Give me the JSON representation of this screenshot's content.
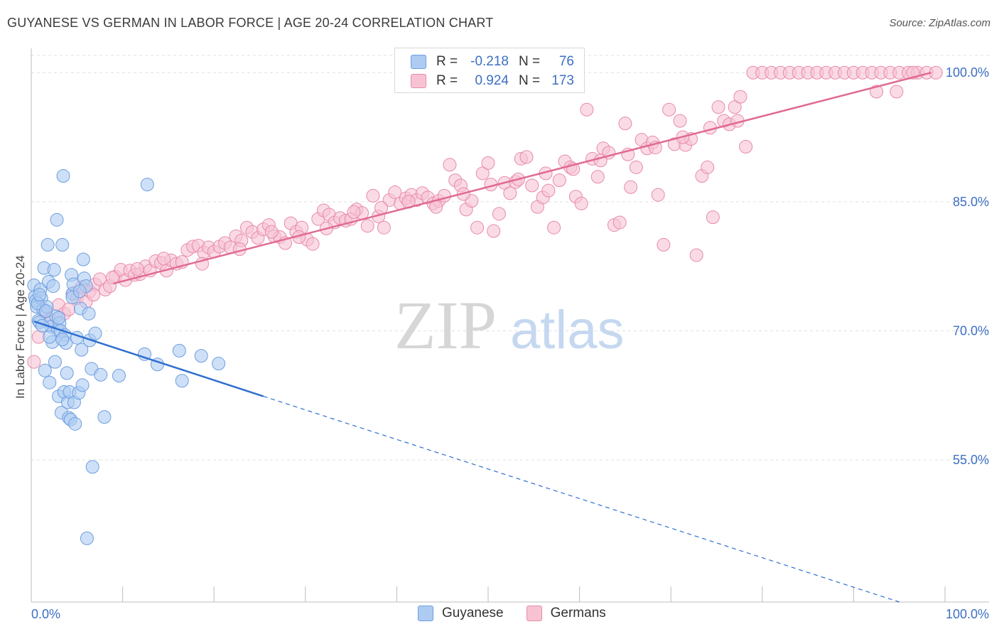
{
  "header": {
    "title": "GUYANESE VS GERMAN IN LABOR FORCE | AGE 20-24 CORRELATION CHART",
    "source": "Source: ZipAtlas.com"
  },
  "watermark": {
    "zip": "ZIP",
    "atlas": "atlas"
  },
  "legend_stats": {
    "guyanese": {
      "r_label": "R =",
      "r_value": "-0.218",
      "n_label": "N =",
      "n_value": "76"
    },
    "germans": {
      "r_label": "R =",
      "r_value": "0.924",
      "n_label": "N =",
      "n_value": "173"
    }
  },
  "colors": {
    "guyanese_fill": "#aecbf2",
    "guyanese_stroke": "#6d9ee0",
    "guyanese_line": "#2f6fd0",
    "germans_fill": "#f7c3d3",
    "germans_stroke": "#e88aa8",
    "germans_line": "#e06a95",
    "axis_label": "#3d6fc4",
    "grid": "#e0e0e0"
  },
  "chart_data": {
    "type": "scatter",
    "title": "GUYANESE VS GERMAN IN LABOR FORCE | AGE 20-24 CORRELATION CHART",
    "xlabel": "",
    "ylabel": "In Labor Force | Age 20-24",
    "xlim": [
      0,
      100
    ],
    "ylim": [
      38.5,
      102
    ],
    "x_tick_labels": [
      "0.0%",
      "100.0%"
    ],
    "y_ticks": [
      55,
      70,
      85,
      100
    ],
    "y_tick_labels": [
      "55.0%",
      "70.0%",
      "85.0%",
      "100.0%"
    ],
    "grid": true,
    "legend_position": "bottom",
    "series": [
      {
        "name": "Guyanese",
        "trend": {
          "x0": 0.3,
          "y0": 71.1,
          "x1": 25.4,
          "y1": 62.4,
          "dashed_to_x": 95,
          "dashed_to_y": 38.5
        },
        "points": [
          [
            0.3,
            75.3
          ],
          [
            0.4,
            74.0
          ],
          [
            0.5,
            73.5
          ],
          [
            0.6,
            72.8
          ],
          [
            0.8,
            71.2
          ],
          [
            0.9,
            71.0
          ],
          [
            1.0,
            74.8
          ],
          [
            1.1,
            73.8
          ],
          [
            1.3,
            72.5
          ],
          [
            1.4,
            77.3
          ],
          [
            1.5,
            65.4
          ],
          [
            1.7,
            72.8
          ],
          [
            1.8,
            80.0
          ],
          [
            1.9,
            75.7
          ],
          [
            2.0,
            64.0
          ],
          [
            2.1,
            71.0
          ],
          [
            2.2,
            70.5
          ],
          [
            2.3,
            68.7
          ],
          [
            2.4,
            75.2
          ],
          [
            2.5,
            77.1
          ],
          [
            2.6,
            66.4
          ],
          [
            2.7,
            71.7
          ],
          [
            2.8,
            82.9
          ],
          [
            2.9,
            70.1
          ],
          [
            3.0,
            62.4
          ],
          [
            3.1,
            70.9
          ],
          [
            3.2,
            70.0
          ],
          [
            3.3,
            60.5
          ],
          [
            3.4,
            80.0
          ],
          [
            3.5,
            88.0
          ],
          [
            3.6,
            62.9
          ],
          [
            3.7,
            69.5
          ],
          [
            3.8,
            68.6
          ],
          [
            3.9,
            65.1
          ],
          [
            4.0,
            61.7
          ],
          [
            4.1,
            59.9
          ],
          [
            4.2,
            62.9
          ],
          [
            4.3,
            59.7
          ],
          [
            4.4,
            76.5
          ],
          [
            4.5,
            74.3
          ],
          [
            4.6,
            75.4
          ],
          [
            4.7,
            61.7
          ],
          [
            4.8,
            59.2
          ],
          [
            5.0,
            69.2
          ],
          [
            5.2,
            62.8
          ],
          [
            5.4,
            72.6
          ],
          [
            5.5,
            67.8
          ],
          [
            5.6,
            63.7
          ],
          [
            5.7,
            78.3
          ],
          [
            5.8,
            76.1
          ],
          [
            6.0,
            75.2
          ],
          [
            6.3,
            72.0
          ],
          [
            6.4,
            68.9
          ],
          [
            6.6,
            65.6
          ],
          [
            6.7,
            54.2
          ],
          [
            7.0,
            69.7
          ],
          [
            7.6,
            64.9
          ],
          [
            8.0,
            60.0
          ],
          [
            9.6,
            64.8
          ],
          [
            12.4,
            67.3
          ],
          [
            12.7,
            87.0
          ],
          [
            13.8,
            66.1
          ],
          [
            16.2,
            67.7
          ],
          [
            16.5,
            64.2
          ],
          [
            18.6,
            67.1
          ],
          [
            20.5,
            66.2
          ],
          [
            6.1,
            45.9
          ],
          [
            4.5,
            73.9
          ],
          [
            0.7,
            73.2
          ],
          [
            1.6,
            72.3
          ],
          [
            3.0,
            71.5
          ],
          [
            2.0,
            69.3
          ],
          [
            1.2,
            70.6
          ],
          [
            5.3,
            74.6
          ],
          [
            3.4,
            69.0
          ],
          [
            0.9,
            74.2
          ]
        ]
      },
      {
        "name": "Germans",
        "trend": {
          "x0": 9.0,
          "y0": 75.5,
          "x1": 98.5,
          "y1": 100.0
        },
        "points": [
          [
            0.3,
            66.4
          ],
          [
            0.8,
            69.3
          ],
          [
            1.5,
            72.2
          ],
          [
            2.2,
            71.3
          ],
          [
            3.0,
            73.0
          ],
          [
            3.6,
            72.0
          ],
          [
            4.1,
            72.5
          ],
          [
            4.6,
            74.4
          ],
          [
            5.0,
            73.8
          ],
          [
            5.5,
            75.1
          ],
          [
            6.0,
            73.4
          ],
          [
            6.4,
            74.6
          ],
          [
            7.0,
            75.4
          ],
          [
            7.5,
            76.0
          ],
          [
            8.1,
            74.8
          ],
          [
            8.6,
            75.2
          ],
          [
            9.2,
            76.3
          ],
          [
            9.8,
            77.1
          ],
          [
            10.3,
            75.9
          ],
          [
            10.8,
            77.0
          ],
          [
            11.3,
            76.5
          ],
          [
            11.9,
            76.6
          ],
          [
            12.5,
            77.5
          ],
          [
            13.0,
            77.0
          ],
          [
            13.6,
            78.1
          ],
          [
            14.2,
            77.9
          ],
          [
            14.8,
            77.0
          ],
          [
            15.3,
            78.2
          ],
          [
            15.9,
            77.8
          ],
          [
            16.5,
            78.0
          ],
          [
            17.1,
            79.4
          ],
          [
            17.7,
            79.8
          ],
          [
            18.3,
            79.9
          ],
          [
            18.9,
            79.1
          ],
          [
            19.4,
            79.7
          ],
          [
            20.0,
            79.2
          ],
          [
            20.6,
            79.8
          ],
          [
            21.2,
            80.2
          ],
          [
            21.8,
            79.7
          ],
          [
            22.4,
            81.0
          ],
          [
            23.0,
            80.5
          ],
          [
            23.6,
            82.0
          ],
          [
            24.2,
            81.5
          ],
          [
            24.8,
            80.8
          ],
          [
            25.4,
            81.8
          ],
          [
            26.0,
            82.3
          ],
          [
            26.6,
            81.0
          ],
          [
            27.2,
            80.9
          ],
          [
            27.8,
            80.2
          ],
          [
            28.4,
            82.5
          ],
          [
            29.0,
            81.5
          ],
          [
            29.6,
            82.0
          ],
          [
            30.2,
            80.6
          ],
          [
            30.8,
            80.1
          ],
          [
            31.4,
            83.0
          ],
          [
            32.0,
            84.0
          ],
          [
            32.6,
            83.5
          ],
          [
            33.2,
            82.6
          ],
          [
            33.8,
            83.1
          ],
          [
            34.4,
            82.8
          ],
          [
            35.0,
            83.0
          ],
          [
            35.6,
            84.1
          ],
          [
            36.2,
            83.7
          ],
          [
            36.8,
            82.2
          ],
          [
            37.4,
            85.7
          ],
          [
            38.0,
            83.3
          ],
          [
            38.6,
            82.0
          ],
          [
            39.2,
            85.2
          ],
          [
            39.8,
            86.1
          ],
          [
            40.4,
            84.8
          ],
          [
            41.0,
            85.4
          ],
          [
            41.6,
            85.8
          ],
          [
            42.2,
            85.2
          ],
          [
            42.8,
            86.0
          ],
          [
            43.4,
            85.5
          ],
          [
            44.0,
            84.8
          ],
          [
            44.6,
            85.1
          ],
          [
            45.2,
            85.7
          ],
          [
            45.8,
            89.3
          ],
          [
            46.4,
            87.5
          ],
          [
            47.0,
            86.9
          ],
          [
            47.6,
            84.1
          ],
          [
            48.2,
            85.1
          ],
          [
            48.8,
            82.0
          ],
          [
            49.4,
            88.3
          ],
          [
            50.0,
            89.5
          ],
          [
            50.6,
            81.6
          ],
          [
            51.2,
            83.6
          ],
          [
            51.8,
            87.2
          ],
          [
            52.4,
            86.0
          ],
          [
            53.0,
            87.3
          ],
          [
            53.6,
            90.0
          ],
          [
            54.2,
            90.2
          ],
          [
            54.8,
            86.9
          ],
          [
            55.4,
            84.4
          ],
          [
            56.0,
            85.5
          ],
          [
            56.6,
            86.3
          ],
          [
            57.2,
            82.0
          ],
          [
            57.8,
            87.5
          ],
          [
            58.4,
            89.7
          ],
          [
            59.0,
            89.0
          ],
          [
            59.6,
            85.6
          ],
          [
            60.2,
            84.8
          ],
          [
            60.8,
            95.7
          ],
          [
            61.4,
            90.0
          ],
          [
            62.0,
            87.9
          ],
          [
            62.6,
            91.2
          ],
          [
            63.2,
            90.7
          ],
          [
            63.8,
            82.3
          ],
          [
            64.4,
            82.6
          ],
          [
            65.0,
            94.1
          ],
          [
            65.6,
            86.7
          ],
          [
            66.2,
            89.0
          ],
          [
            66.8,
            92.2
          ],
          [
            67.4,
            91.2
          ],
          [
            68.0,
            91.9
          ],
          [
            68.6,
            85.8
          ],
          [
            69.2,
            80.0
          ],
          [
            69.8,
            95.7
          ],
          [
            70.4,
            91.7
          ],
          [
            71.0,
            94.4
          ],
          [
            71.6,
            91.6
          ],
          [
            72.2,
            92.3
          ],
          [
            72.8,
            78.8
          ],
          [
            73.4,
            88.0
          ],
          [
            74.0,
            89.0
          ],
          [
            74.6,
            83.2
          ],
          [
            75.2,
            96.0
          ],
          [
            75.8,
            94.4
          ],
          [
            76.4,
            94.0
          ],
          [
            77.0,
            96.0
          ],
          [
            77.6,
            97.2
          ],
          [
            78.2,
            91.4
          ],
          [
            79.0,
            100.0
          ],
          [
            80.0,
            100.0
          ],
          [
            81.0,
            100.0
          ],
          [
            82.0,
            100.0
          ],
          [
            83.0,
            100.0
          ],
          [
            84.0,
            100.0
          ],
          [
            85.0,
            100.0
          ],
          [
            86.0,
            100.0
          ],
          [
            87.0,
            100.0
          ],
          [
            88.0,
            100.0
          ],
          [
            89.0,
            100.0
          ],
          [
            90.0,
            100.0
          ],
          [
            91.0,
            100.0
          ],
          [
            92.0,
            100.0
          ],
          [
            93.0,
            100.0
          ],
          [
            94.0,
            100.0
          ],
          [
            95.0,
            100.0
          ],
          [
            96.0,
            100.0
          ],
          [
            97.0,
            100.0
          ],
          [
            98.0,
            100.0
          ],
          [
            99.0,
            100.0
          ],
          [
            92.5,
            97.8
          ],
          [
            94.7,
            97.8
          ],
          [
            96.5,
            100.0
          ],
          [
            6.8,
            74.2
          ],
          [
            8.9,
            76.2
          ],
          [
            11.6,
            77.2
          ],
          [
            14.5,
            78.4
          ],
          [
            18.7,
            77.8
          ],
          [
            22.8,
            79.5
          ],
          [
            26.3,
            81.5
          ],
          [
            29.3,
            80.9
          ],
          [
            32.3,
            81.9
          ],
          [
            35.3,
            83.8
          ],
          [
            38.3,
            84.3
          ],
          [
            41.3,
            85.0
          ],
          [
            44.3,
            84.4
          ],
          [
            47.3,
            85.9
          ],
          [
            50.3,
            87.0
          ],
          [
            53.3,
            87.6
          ],
          [
            56.3,
            88.3
          ],
          [
            59.3,
            88.8
          ],
          [
            62.3,
            89.8
          ],
          [
            65.3,
            90.5
          ],
          [
            68.3,
            91.3
          ],
          [
            71.3,
            92.5
          ],
          [
            74.3,
            93.6
          ],
          [
            77.3,
            94.4
          ]
        ]
      }
    ]
  },
  "bottom_legend": {
    "guyanese": "Guyanese",
    "germans": "Germans"
  }
}
